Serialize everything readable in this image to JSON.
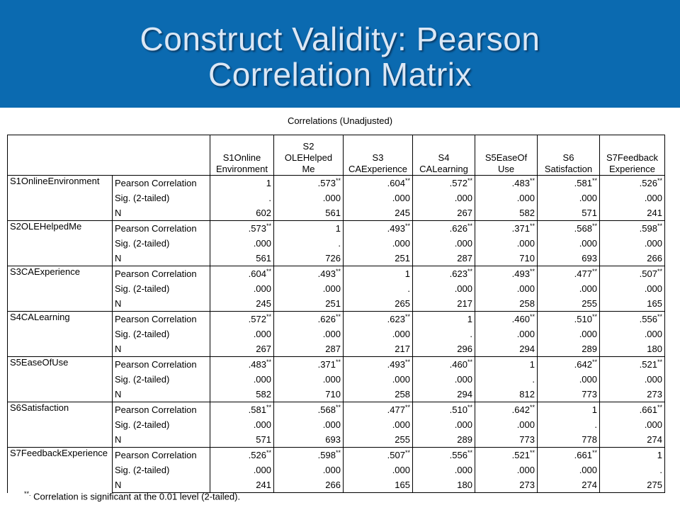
{
  "slide": {
    "title_line1": "Construct Validity: Pearson",
    "title_line2": "Correlation Matrix"
  },
  "table": {
    "caption": "Correlations (Unadjusted)",
    "columns": [
      {
        "line1": "",
        "line2": "S1Online",
        "line3": "Environment"
      },
      {
        "line1": "S2",
        "line2": "OLEHelped",
        "line3": "Me"
      },
      {
        "line1": "",
        "line2": "S3",
        "line3": "CAExperience"
      },
      {
        "line1": "",
        "line2": "S4",
        "line3": "CALearning"
      },
      {
        "line1": "",
        "line2": "S5EaseOf",
        "line3": "Use"
      },
      {
        "line1": "",
        "line2": "S6",
        "line3": "Satisfaction"
      },
      {
        "line1": "",
        "line2": "S7Feedback",
        "line3": "Experience"
      }
    ],
    "stat_labels": [
      "Pearson Correlation",
      "Sig. (2-tailed)",
      "N"
    ],
    "rows": [
      {
        "name": "S1OnlineEnvironment",
        "r": [
          "1",
          ".573",
          ".604",
          ".572",
          ".483",
          ".581",
          ".526"
        ],
        "sig": [
          ".",
          ".000",
          ".000",
          ".000",
          ".000",
          ".000",
          ".000"
        ],
        "n": [
          "602",
          "561",
          "245",
          "267",
          "582",
          "571",
          "241"
        ]
      },
      {
        "name": "S2OLEHelpedMe",
        "r": [
          ".573",
          "1",
          ".493",
          ".626",
          ".371",
          ".568",
          ".598"
        ],
        "sig": [
          ".000",
          ".",
          ".000",
          ".000",
          ".000",
          ".000",
          ".000"
        ],
        "n": [
          "561",
          "726",
          "251",
          "287",
          "710",
          "693",
          "266"
        ]
      },
      {
        "name": "S3CAExperience",
        "r": [
          ".604",
          ".493",
          "1",
          ".623",
          ".493",
          ".477",
          ".507"
        ],
        "sig": [
          ".000",
          ".000",
          ".",
          ".000",
          ".000",
          ".000",
          ".000"
        ],
        "n": [
          "245",
          "251",
          "265",
          "217",
          "258",
          "255",
          "165"
        ]
      },
      {
        "name": "S4CALearning",
        "r": [
          ".572",
          ".626",
          ".623",
          "1",
          ".460",
          ".510",
          ".556"
        ],
        "sig": [
          ".000",
          ".000",
          ".000",
          ".",
          ".000",
          ".000",
          ".000"
        ],
        "n": [
          "267",
          "287",
          "217",
          "296",
          "294",
          "289",
          "180"
        ]
      },
      {
        "name": "S5EaseOfUse",
        "r": [
          ".483",
          ".371",
          ".493",
          ".460",
          "1",
          ".642",
          ".521"
        ],
        "sig": [
          ".000",
          ".000",
          ".000",
          ".000",
          ".",
          ".000",
          ".000"
        ],
        "n": [
          "582",
          "710",
          "258",
          "294",
          "812",
          "773",
          "273"
        ]
      },
      {
        "name": "S6Satisfaction",
        "r": [
          ".581",
          ".568",
          ".477",
          ".510",
          ".642",
          "1",
          ".661"
        ],
        "sig": [
          ".000",
          ".000",
          ".000",
          ".000",
          ".000",
          ".",
          ".000"
        ],
        "n": [
          "571",
          "693",
          "255",
          "289",
          "773",
          "778",
          "274"
        ]
      },
      {
        "name": "S7FeedbackExperience",
        "r": [
          ".526",
          ".598",
          ".507",
          ".556",
          ".521",
          ".661",
          "1"
        ],
        "sig": [
          ".000",
          ".000",
          ".000",
          ".000",
          ".000",
          ".000",
          "."
        ],
        "n": [
          "241",
          "266",
          "165",
          "180",
          "273",
          "274",
          "275"
        ]
      }
    ],
    "significance_marker": "**",
    "footnote_marker": "**.",
    "footnote_text": "Correlation is significant at the 0.01 level (2-tailed)."
  }
}
